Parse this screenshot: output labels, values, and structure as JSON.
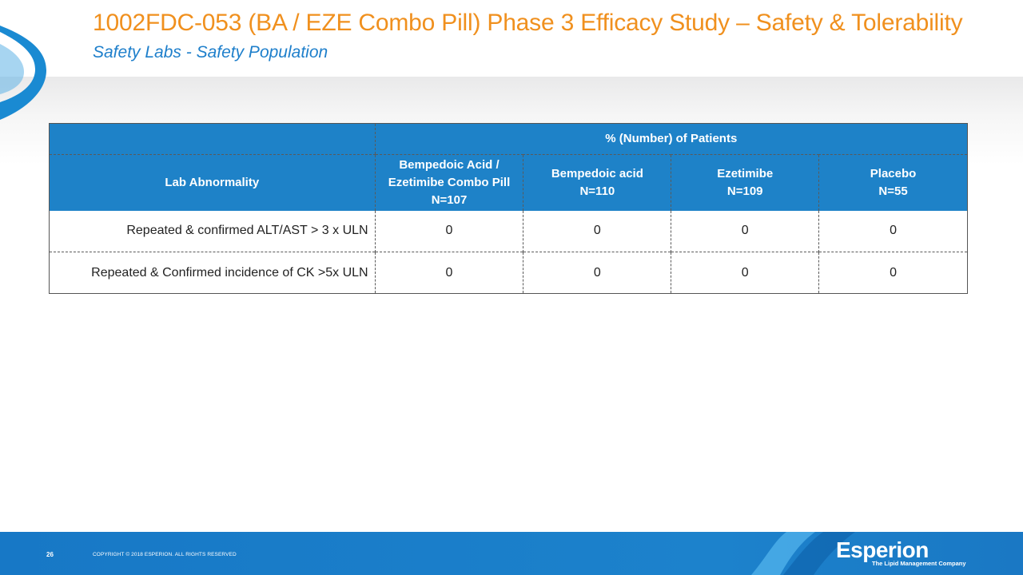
{
  "slide": {
    "title": "1002FDC-053 (BA / EZE Combo Pill) Phase 3 Efficacy Study – Safety & Tolerability",
    "subtitle": "Safety Labs - Safety Population"
  },
  "table": {
    "group_header": "% (Number) of Patients",
    "row_header": "Lab Abnormality",
    "columns": [
      {
        "line1": "Bempedoic Acid /",
        "line2": "Ezetimibe Combo Pill",
        "n": "N=107"
      },
      {
        "line1": "",
        "line2": "Bempedoic acid",
        "n": "N=110"
      },
      {
        "line1": "",
        "line2": "Ezetimibe",
        "n": "N=109"
      },
      {
        "line1": "",
        "line2": "Placebo",
        "n": "N=55"
      }
    ],
    "rows": [
      {
        "label": "Repeated & confirmed ALT/AST  > 3 x ULN",
        "values": [
          "0",
          "0",
          "0",
          "0"
        ]
      },
      {
        "label": "Repeated & Confirmed incidence of CK >5x ULN",
        "values": [
          "0",
          "0",
          "0",
          "0"
        ]
      }
    ]
  },
  "footer": {
    "page_number": "26",
    "copyright": "COPYRIGHT © 2018 ESPERION. ALL RIGHTS RESERVED",
    "logo_text": "Esperion",
    "tagline": "The Lipid Management Company"
  },
  "colors": {
    "title": "#f0901e",
    "subtitle": "#1e7fcb",
    "table_header": "#1e82c8",
    "footer": "#1a7cc8"
  },
  "icons": [
    "ribbon-decoration-icon",
    "footer-swirl-icon"
  ]
}
